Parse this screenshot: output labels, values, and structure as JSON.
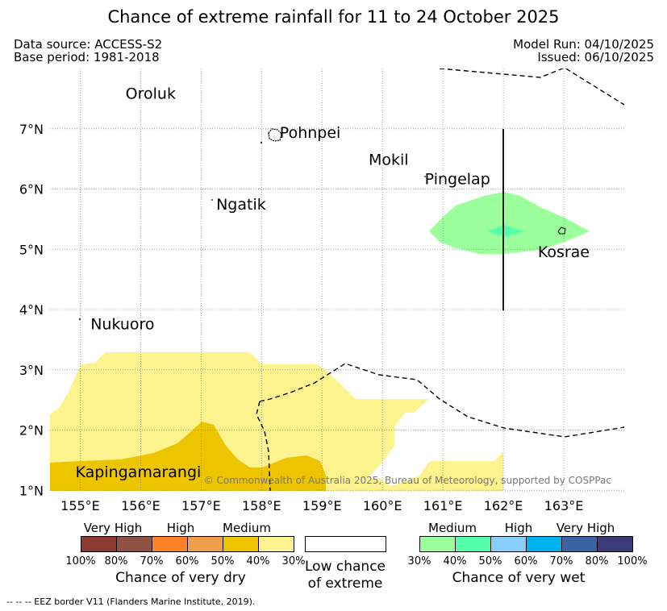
{
  "header": {
    "title": "Chance of extreme rainfall for 11 to 24 October 2025",
    "data_source": "Data source: ACCESS-S2",
    "base_period": "Base period: 1981-2018",
    "model_run": "Model Run: 04/10/2025",
    "issued": "Issued: 06/10/2025"
  },
  "map": {
    "lon_labels": [
      "155°E",
      "156°E",
      "157°E",
      "158°E",
      "159°E",
      "160°E",
      "161°E",
      "162°E",
      "163°E"
    ],
    "lat_labels": [
      "1°N",
      "2°N",
      "3°N",
      "4°N",
      "5°N",
      "6°N",
      "7°N"
    ],
    "places": [
      {
        "name": "Oroluk",
        "lon": 155.75,
        "lat": 7.5
      },
      {
        "name": "Pohnpei",
        "lon": 158.3,
        "lat": 6.85
      },
      {
        "name": "Mokil",
        "lon": 159.77,
        "lat": 6.4
      },
      {
        "name": "Pingelap",
        "lon": 160.7,
        "lat": 6.08
      },
      {
        "name": "Ngatik",
        "lon": 157.25,
        "lat": 5.66
      },
      {
        "name": "Kosrae",
        "lon": 162.57,
        "lat": 4.87
      },
      {
        "name": "Nukuoro",
        "lon": 155.17,
        "lat": 3.67
      },
      {
        "name": "Kapingamarangi",
        "lon": 154.92,
        "lat": 1.22
      }
    ],
    "copyright": "© Commonwealth of Australia 2025, Bureau of Meteorology, supported by COSPPac",
    "colors": {
      "dry_medium_30": "#fdf38e",
      "dry_medium_40": "#ecc400",
      "wet_medium_30": "#9bff9b",
      "wet_medium_40": "#55ffaa",
      "grid": "#888888"
    }
  },
  "legend": {
    "dry": {
      "categories": [
        "Very High",
        "High",
        "Medium"
      ],
      "ticks": [
        "100%",
        "80%",
        "70%",
        "60%",
        "50%",
        "40%",
        "30%"
      ],
      "colors": [
        "#8c3b32",
        "#8d5241",
        "#ff8326",
        "#ef9f4b",
        "#ecc400",
        "#fdf38e"
      ],
      "caption": "Chance of very dry"
    },
    "low": {
      "caption_line1": "Low chance",
      "caption_line2": "of extreme"
    },
    "wet": {
      "categories": [
        "Medium",
        "High",
        "Very High"
      ],
      "ticks": [
        "30%",
        "40%",
        "50%",
        "60%",
        "70%",
        "80%",
        "100%"
      ],
      "colors": [
        "#9bff9b",
        "#55ffaa",
        "#87cefa",
        "#00b2ee",
        "#3b63a2",
        "#3a3b78"
      ],
      "caption": "Chance of very wet"
    }
  },
  "footer": {
    "eez_note": "--  --  -- EEZ border V11 (Flanders Marine Institute, 2019)."
  }
}
